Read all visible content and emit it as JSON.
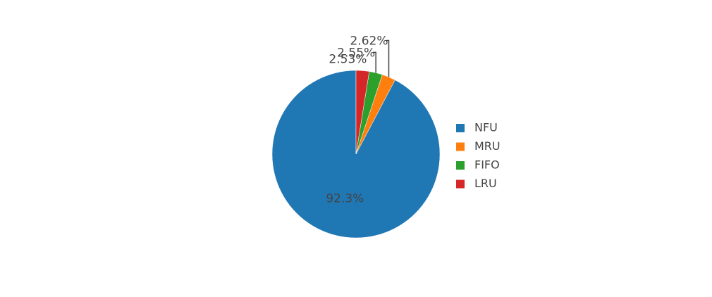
{
  "chart_data": {
    "type": "pie",
    "slices": [
      {
        "label": "NFU",
        "value": 92.3,
        "text": "92.3%",
        "color": "#1f77b4"
      },
      {
        "label": "MRU",
        "value": 2.62,
        "text": "2.62%",
        "color": "#ff7f0e"
      },
      {
        "label": "FIFO",
        "value": 2.55,
        "text": "2.55%",
        "color": "#2ca02c"
      },
      {
        "label": "LRU",
        "value": 2.53,
        "text": "2.53%",
        "color": "#d62728"
      }
    ],
    "direction": "counterclockwise",
    "start_angle": "top",
    "legend_position": "right"
  }
}
